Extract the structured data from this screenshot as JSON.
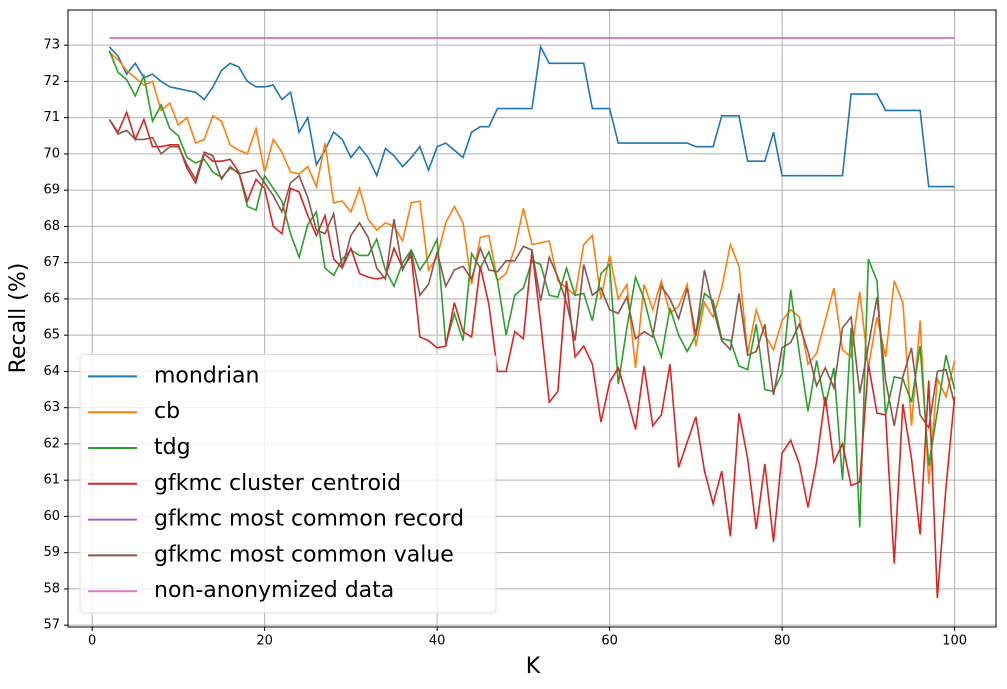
{
  "chart_data": {
    "type": "line",
    "x": [
      2,
      3,
      4,
      5,
      6,
      7,
      8,
      9,
      10,
      11,
      12,
      13,
      14,
      15,
      16,
      17,
      18,
      19,
      20,
      21,
      22,
      23,
      24,
      25,
      26,
      27,
      28,
      29,
      30,
      31,
      32,
      33,
      34,
      35,
      36,
      37,
      38,
      39,
      40,
      41,
      42,
      43,
      44,
      45,
      46,
      47,
      48,
      49,
      50,
      51,
      52,
      53,
      54,
      55,
      56,
      57,
      58,
      59,
      60,
      61,
      62,
      63,
      64,
      65,
      66,
      67,
      68,
      69,
      70,
      71,
      72,
      73,
      74,
      75,
      76,
      77,
      78,
      79,
      80,
      81,
      82,
      83,
      84,
      85,
      86,
      87,
      88,
      89,
      90,
      91,
      92,
      93,
      94,
      95,
      96,
      97,
      98,
      99,
      100
    ],
    "series": [
      {
        "name": "mondrian",
        "color": "#1f77b4",
        "values": [
          72.95,
          72.7,
          72.2,
          72.5,
          72.1,
          72.2,
          72.0,
          71.85,
          71.8,
          71.75,
          71.7,
          71.5,
          71.85,
          72.3,
          72.5,
          72.4,
          72.0,
          71.85,
          71.85,
          71.9,
          71.5,
          71.7,
          70.6,
          71.0,
          69.7,
          70.1,
          70.6,
          70.4,
          69.9,
          70.2,
          69.9,
          69.4,
          70.15,
          69.95,
          69.65,
          69.9,
          70.2,
          69.55,
          70.2,
          70.3,
          70.1,
          69.9,
          70.6,
          70.75,
          70.75,
          71.25,
          71.25,
          71.25,
          71.25,
          71.25,
          72.95,
          72.5,
          72.5,
          72.5,
          72.5,
          72.5,
          71.25,
          71.25,
          71.25,
          70.3,
          70.3,
          70.3,
          70.3,
          70.3,
          70.3,
          70.3,
          70.3,
          70.3,
          70.2,
          70.2,
          70.2,
          71.05,
          71.05,
          71.05,
          69.8,
          69.8,
          69.8,
          70.6,
          69.4,
          69.4,
          69.4,
          69.4,
          69.4,
          69.4,
          69.4,
          69.4,
          71.65,
          71.65,
          71.65,
          71.65,
          71.2,
          71.2,
          71.2,
          71.2,
          71.2,
          69.1,
          69.1,
          69.1,
          69.1
        ]
      },
      {
        "name": "cb",
        "color": "#ff7f0e",
        "values": [
          72.8,
          72.6,
          72.3,
          72.1,
          71.9,
          72.0,
          71.2,
          71.4,
          70.8,
          71.0,
          70.3,
          70.4,
          71.05,
          70.9,
          70.25,
          70.1,
          70.0,
          70.7,
          69.5,
          70.4,
          70.05,
          69.5,
          69.45,
          69.65,
          69.1,
          70.3,
          68.65,
          68.7,
          68.4,
          69.05,
          68.2,
          67.9,
          68.1,
          68.0,
          67.6,
          68.65,
          68.7,
          66.8,
          67.15,
          68.1,
          68.55,
          68.1,
          66.4,
          67.7,
          67.75,
          66.5,
          66.7,
          67.4,
          68.5,
          67.5,
          67.55,
          67.6,
          66.5,
          66.3,
          66.1,
          67.5,
          67.75,
          66.0,
          67.2,
          66.0,
          66.4,
          64.1,
          66.4,
          65.7,
          66.5,
          65.6,
          65.8,
          66.4,
          64.7,
          65.9,
          65.5,
          66.3,
          67.5,
          66.9,
          64.5,
          65.7,
          65.0,
          64.6,
          65.4,
          65.7,
          65.5,
          64.2,
          64.5,
          65.4,
          66.3,
          64.6,
          64.4,
          66.2,
          64.1,
          65.5,
          64.4,
          66.5,
          65.9,
          62.5,
          65.4,
          60.9,
          63.8,
          63.3,
          64.3
        ]
      },
      {
        "name": "tdg",
        "color": "#2ca02c",
        "values": [
          72.85,
          72.25,
          72.05,
          71.6,
          72.15,
          70.9,
          71.35,
          70.7,
          70.5,
          69.9,
          69.75,
          69.85,
          69.5,
          69.35,
          69.6,
          69.5,
          68.55,
          68.45,
          69.4,
          69.05,
          68.7,
          67.8,
          67.15,
          68.05,
          68.4,
          66.85,
          66.65,
          67.1,
          67.35,
          67.2,
          67.2,
          67.65,
          66.8,
          66.35,
          67.0,
          67.35,
          66.8,
          67.15,
          67.65,
          64.75,
          65.6,
          64.85,
          67.25,
          66.85,
          67.3,
          66.5,
          65.0,
          66.1,
          66.3,
          67.05,
          66.95,
          66.1,
          66.05,
          66.85,
          66.1,
          66.15,
          65.4,
          66.7,
          66.95,
          63.65,
          65.2,
          66.6,
          66.0,
          65.05,
          64.4,
          65.75,
          65.0,
          64.55,
          65.0,
          66.15,
          65.95,
          64.9,
          64.85,
          64.15,
          64.05,
          65.3,
          63.5,
          63.45,
          63.95,
          66.25,
          64.5,
          62.9,
          64.3,
          63.05,
          64.1,
          61.0,
          65.2,
          59.7,
          67.1,
          66.5,
          62.8,
          63.85,
          63.8,
          63.15,
          64.7,
          61.4,
          62.9,
          64.45,
          63.5
        ]
      },
      {
        "name": "gfkmc cluster centroid",
        "color": "#d62728",
        "values": [
          70.95,
          70.6,
          71.15,
          70.4,
          70.95,
          70.2,
          70.2,
          70.25,
          70.25,
          69.6,
          69.2,
          70.0,
          69.8,
          69.8,
          69.85,
          69.5,
          68.7,
          69.3,
          69.05,
          68.0,
          67.8,
          69.05,
          68.95,
          68.3,
          67.75,
          68.3,
          67.1,
          66.85,
          67.4,
          66.7,
          66.6,
          66.55,
          66.6,
          67.4,
          66.85,
          67.2,
          64.95,
          64.85,
          64.65,
          64.7,
          65.9,
          65.1,
          64.95,
          66.9,
          65.85,
          64.0,
          64.0,
          65.1,
          64.9,
          67.35,
          65.35,
          63.15,
          63.45,
          66.5,
          64.4,
          64.7,
          64.2,
          62.6,
          63.7,
          64.1,
          63.3,
          62.4,
          64.15,
          62.5,
          62.8,
          64.2,
          61.35,
          62.05,
          62.75,
          61.25,
          60.35,
          61.25,
          59.45,
          62.85,
          61.6,
          59.65,
          61.45,
          59.3,
          61.75,
          62.1,
          61.45,
          60.25,
          61.5,
          63.3,
          61.5,
          62.0,
          60.85,
          60.95,
          64.2,
          62.85,
          62.8,
          58.7,
          63.1,
          61.6,
          59.5,
          63.75,
          57.75,
          60.8,
          63.3
        ]
      },
      {
        "name": "gfkmc most common record",
        "color": "#9467bd",
        "values": [
          73.2,
          73.2,
          73.2,
          73.2,
          73.2,
          73.2,
          73.2,
          73.2,
          73.2,
          73.2,
          73.2,
          73.2,
          73.2,
          73.2,
          73.2,
          73.2,
          73.2,
          73.2,
          73.2,
          73.2,
          73.2,
          73.2,
          73.2,
          73.2,
          73.2,
          73.2,
          73.2,
          73.2,
          73.2,
          73.2,
          73.2,
          73.2,
          73.2,
          73.2,
          73.2,
          73.2,
          73.2,
          73.2,
          73.2,
          73.2,
          73.2,
          73.2,
          73.2,
          73.2,
          73.2,
          73.2,
          73.2,
          73.2,
          73.2,
          73.2,
          73.2,
          73.2,
          73.2,
          73.2,
          73.2,
          73.2,
          73.2,
          73.2,
          73.2,
          73.2,
          73.2,
          73.2,
          73.2,
          73.2,
          73.2,
          73.2,
          73.2,
          73.2,
          73.2,
          73.2,
          73.2,
          73.2,
          73.2,
          73.2,
          73.2,
          73.2,
          73.2,
          73.2,
          73.2,
          73.2,
          73.2,
          73.2,
          73.2,
          73.2,
          73.2,
          73.2,
          73.2,
          73.2,
          73.2,
          73.2,
          73.2,
          73.2,
          73.2,
          73.2,
          73.2,
          73.2,
          73.2,
          73.2,
          73.2
        ]
      },
      {
        "name": "gfkmc most common value",
        "color": "#8c564b",
        "values": [
          70.95,
          70.55,
          70.65,
          70.4,
          70.4,
          70.45,
          70.0,
          70.2,
          70.2,
          69.7,
          69.3,
          70.05,
          69.95,
          69.3,
          69.65,
          69.45,
          69.5,
          69.55,
          69.2,
          68.85,
          68.4,
          69.2,
          69.4,
          68.8,
          67.9,
          67.8,
          68.35,
          66.85,
          67.75,
          68.1,
          67.7,
          66.85,
          66.55,
          68.2,
          66.8,
          67.3,
          66.1,
          66.4,
          67.3,
          66.35,
          66.8,
          66.9,
          66.55,
          67.4,
          66.8,
          66.75,
          67.05,
          67.05,
          67.45,
          67.35,
          65.95,
          67.15,
          66.6,
          65.9,
          64.85,
          66.95,
          66.1,
          66.3,
          65.7,
          65.6,
          66.05,
          64.9,
          65.1,
          64.95,
          66.35,
          66.0,
          65.45,
          66.3,
          65.0,
          66.8,
          65.75,
          64.85,
          64.6,
          66.15,
          64.45,
          64.55,
          65.3,
          63.35,
          64.65,
          64.8,
          65.3,
          64.55,
          63.6,
          64.1,
          63.55,
          65.2,
          65.5,
          63.4,
          64.7,
          66.05,
          63.75,
          62.5,
          63.85,
          64.65,
          62.8,
          62.45,
          64.0,
          64.05,
          63.1
        ]
      },
      {
        "name": "non-anonymized data",
        "color": "#e377c2",
        "values": [
          73.2,
          73.2,
          73.2,
          73.2,
          73.2,
          73.2,
          73.2,
          73.2,
          73.2,
          73.2,
          73.2,
          73.2,
          73.2,
          73.2,
          73.2,
          73.2,
          73.2,
          73.2,
          73.2,
          73.2,
          73.2,
          73.2,
          73.2,
          73.2,
          73.2,
          73.2,
          73.2,
          73.2,
          73.2,
          73.2,
          73.2,
          73.2,
          73.2,
          73.2,
          73.2,
          73.2,
          73.2,
          73.2,
          73.2,
          73.2,
          73.2,
          73.2,
          73.2,
          73.2,
          73.2,
          73.2,
          73.2,
          73.2,
          73.2,
          73.2,
          73.2,
          73.2,
          73.2,
          73.2,
          73.2,
          73.2,
          73.2,
          73.2,
          73.2,
          73.2,
          73.2,
          73.2,
          73.2,
          73.2,
          73.2,
          73.2,
          73.2,
          73.2,
          73.2,
          73.2,
          73.2,
          73.2,
          73.2,
          73.2,
          73.2,
          73.2,
          73.2,
          73.2,
          73.2,
          73.2,
          73.2,
          73.2,
          73.2,
          73.2,
          73.2,
          73.2,
          73.2,
          73.2,
          73.2,
          73.2,
          73.2,
          73.2,
          73.2,
          73.2,
          73.2,
          73.2,
          73.2,
          73.2,
          73.2
        ]
      }
    ],
    "xlabel": "K",
    "ylabel": "Recall (%)",
    "xlim": [
      -2.8,
      104.8
    ],
    "ylim": [
      56.95,
      73.97
    ],
    "xticks": [
      0,
      20,
      40,
      60,
      80,
      100
    ],
    "yticks": [
      57,
      58,
      59,
      60,
      61,
      62,
      63,
      64,
      65,
      66,
      67,
      68,
      69,
      70,
      71,
      72,
      73
    ],
    "grid": true,
    "legend": "lower left"
  }
}
